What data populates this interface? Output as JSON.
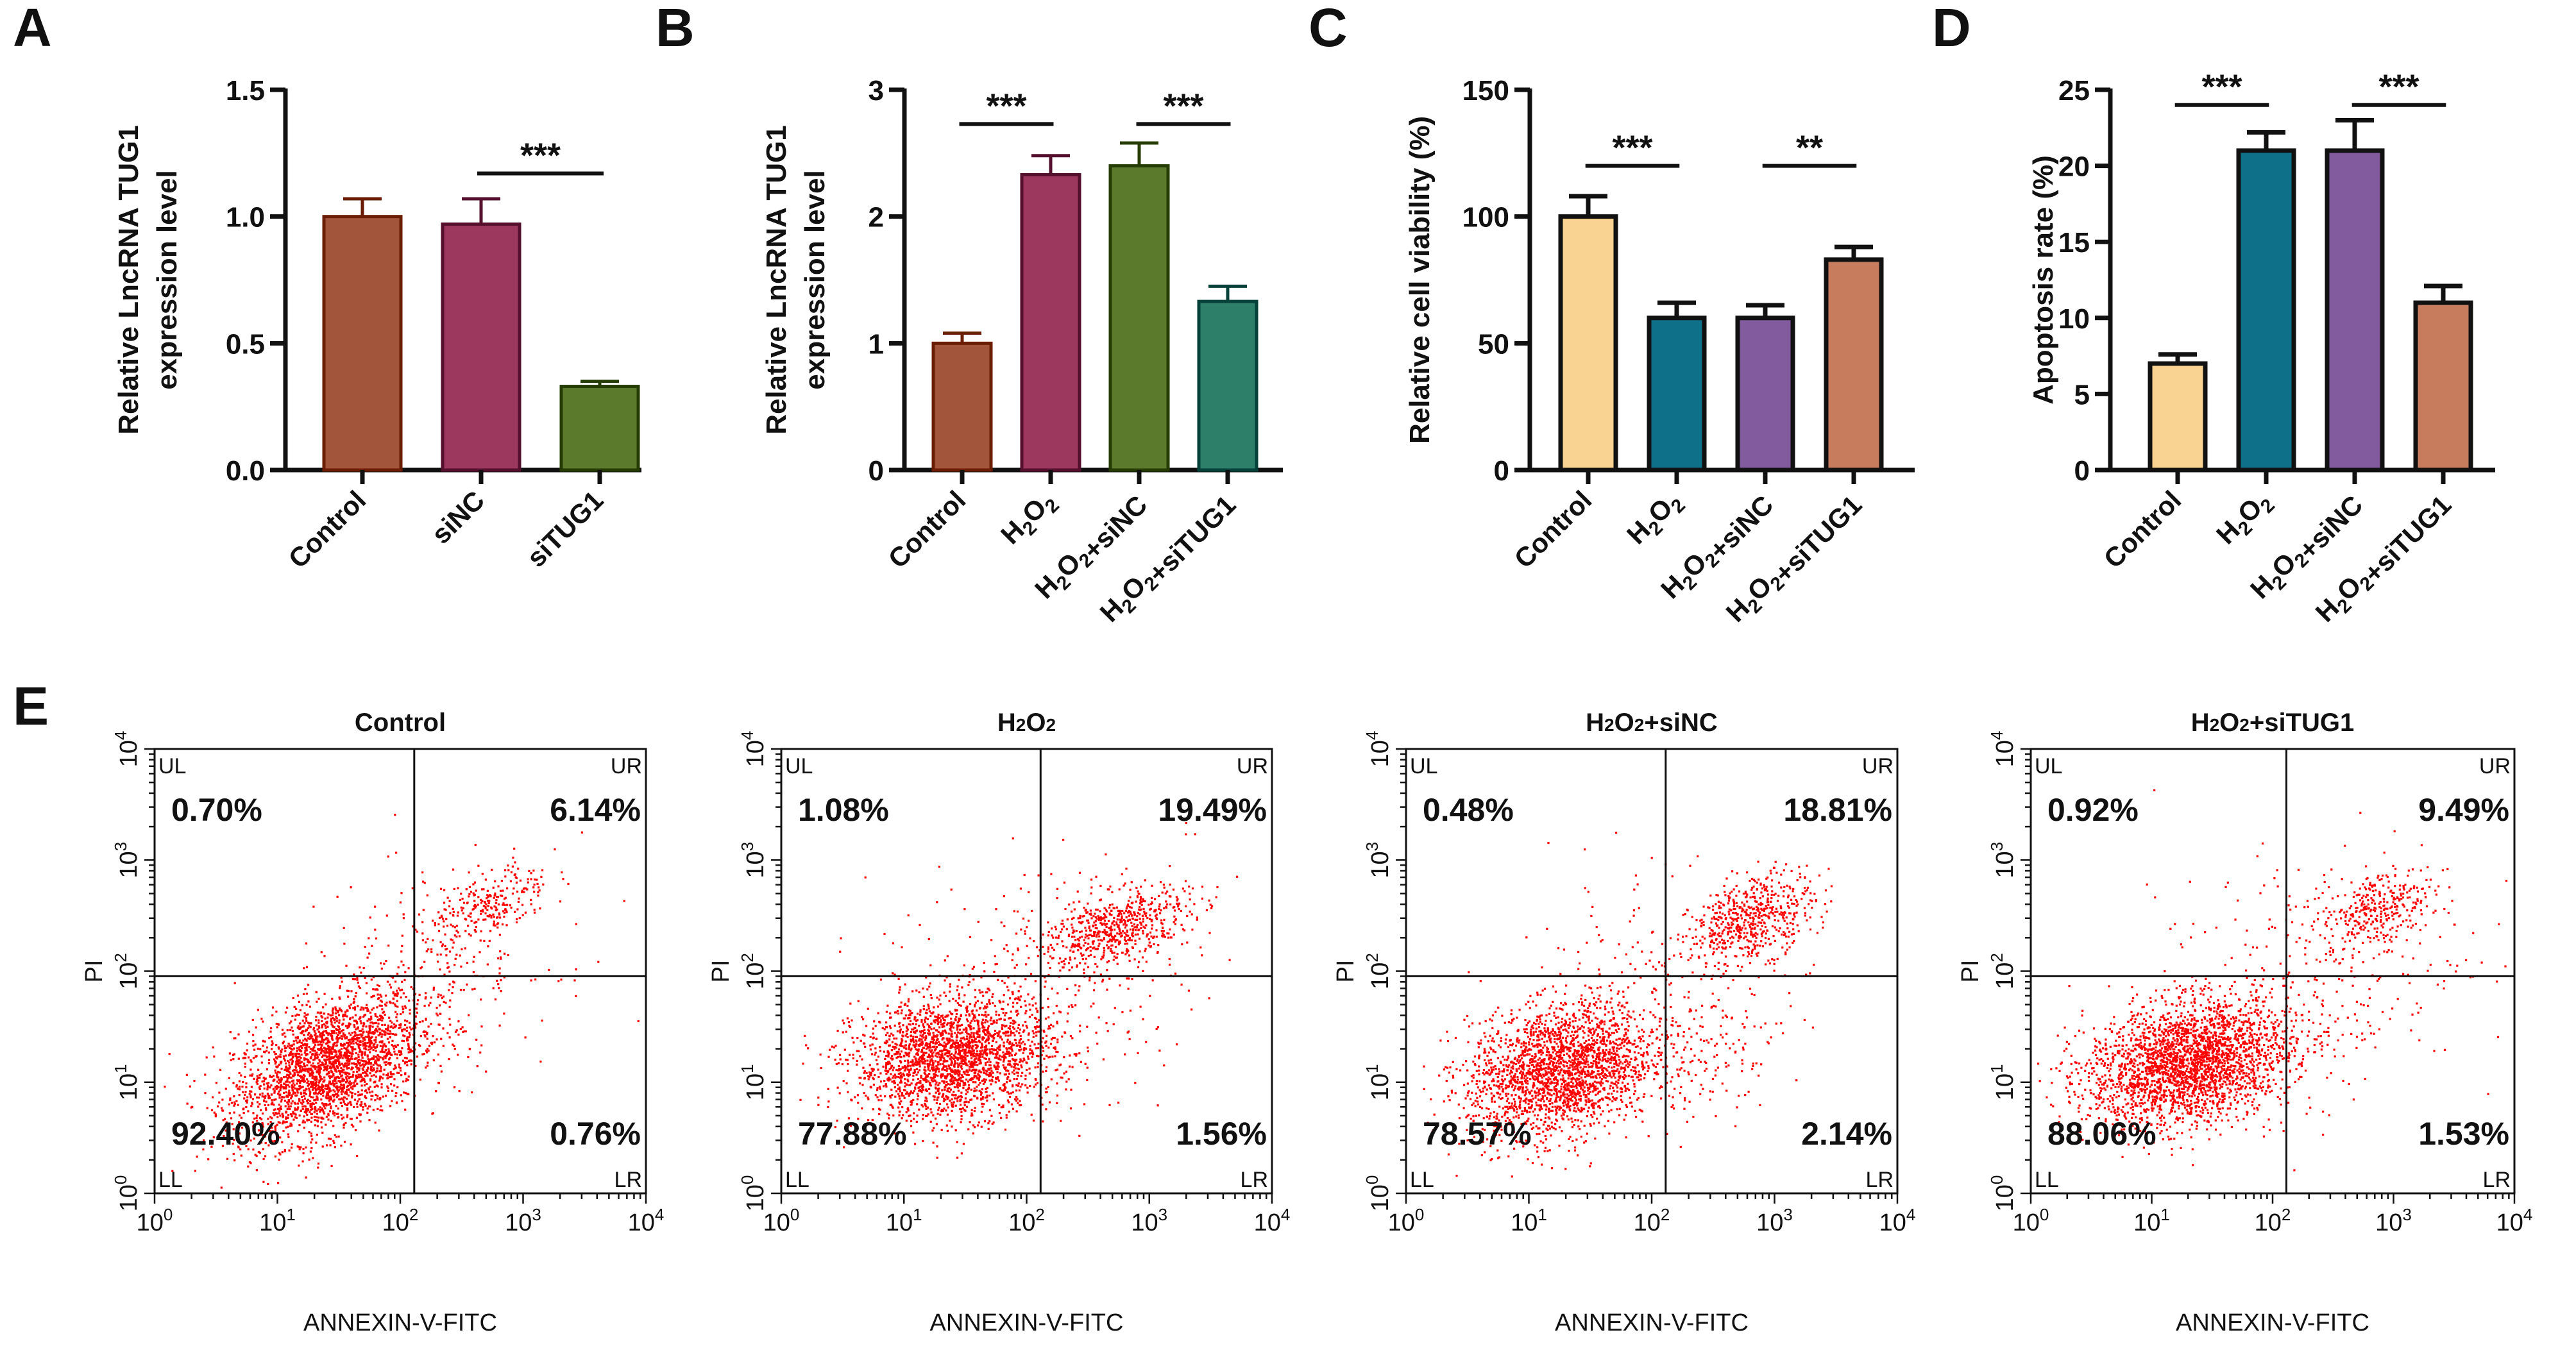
{
  "chart_data": [
    {
      "panel": "A",
      "type": "bar",
      "title": "",
      "xlabel": "",
      "ylabel": [
        "Relative LncRNA TUG1",
        "expression level"
      ],
      "ylim": [
        0,
        1.5
      ],
      "yticks": [
        "0.0",
        "0.5",
        "1.0",
        "1.5"
      ],
      "ytick_values": [
        0,
        0.5,
        1.0,
        1.5
      ],
      "categories": [
        {
          "label": "Control",
          "sub": null
        },
        {
          "label": "siNC",
          "sub": null
        },
        {
          "label": "siTUG1",
          "sub": null
        }
      ],
      "values": [
        1.0,
        0.97,
        0.33
      ],
      "errors": [
        0.07,
        0.1,
        0.02
      ],
      "colors": [
        "#a3553c",
        "#9c385d",
        "#5c7a2c"
      ],
      "edge_colors": [
        "#6b1e05",
        "#55102e",
        "#253d05"
      ],
      "significance": [
        {
          "from": 1,
          "to": 2,
          "label": "***",
          "y": 1.17
        }
      ]
    },
    {
      "panel": "B",
      "type": "bar",
      "title": "",
      "xlabel": "",
      "ylabel": [
        "Relative LncRNA TUG1",
        "expression level"
      ],
      "ylim": [
        0,
        3
      ],
      "yticks": [
        "0",
        "1",
        "2",
        "3"
      ],
      "ytick_values": [
        0,
        1,
        2,
        3
      ],
      "categories": [
        {
          "label": "Control"
        },
        {
          "label": "H2O2"
        },
        {
          "label": "H2O2+siNC"
        },
        {
          "label": "H2O2+siTUG1"
        }
      ],
      "values": [
        1.0,
        2.33,
        2.4,
        1.33
      ],
      "errors": [
        0.08,
        0.15,
        0.18,
        0.12
      ],
      "colors": [
        "#a3553c",
        "#9c385d",
        "#5c7a2c",
        "#2d7f69"
      ],
      "edge_colors": [
        "#6b1e05",
        "#55102e",
        "#253d05",
        "#06423a"
      ],
      "significance": [
        {
          "from": 0,
          "to": 1,
          "label": "***",
          "y": 2.73
        },
        {
          "from": 2,
          "to": 3,
          "label": "***",
          "y": 2.73
        }
      ]
    },
    {
      "panel": "C",
      "type": "bar",
      "title": "",
      "xlabel": "",
      "ylabel": [
        "Relative cell viability (%)"
      ],
      "ylim": [
        0,
        150
      ],
      "yticks": [
        "0",
        "50",
        "100",
        "150"
      ],
      "ytick_values": [
        0,
        50,
        100,
        150
      ],
      "categories": [
        {
          "label": "Control"
        },
        {
          "label": "H2O2"
        },
        {
          "label": "H2O2+siNC"
        },
        {
          "label": "H2O2+siTUG1"
        }
      ],
      "values": [
        100,
        60,
        60,
        83
      ],
      "errors": [
        8,
        6,
        5,
        5
      ],
      "colors": [
        "#f8d391",
        "#0e7189",
        "#825a9e",
        "#c87c5e"
      ],
      "edge_colors": [
        "#111111",
        "#111111",
        "#111111",
        "#111111"
      ],
      "significance": [
        {
          "from": 0,
          "to": 1,
          "label": "***",
          "y": 120
        },
        {
          "from": 2,
          "to": 3,
          "label": "**",
          "y": 120
        }
      ]
    },
    {
      "panel": "D",
      "type": "bar",
      "title": "",
      "xlabel": "",
      "ylabel": [
        "Apoptosis rate (%)"
      ],
      "ylim": [
        0,
        25
      ],
      "yticks": [
        "0",
        "5",
        "10",
        "15",
        "20",
        "25"
      ],
      "ytick_values": [
        0,
        5,
        10,
        15,
        20,
        25
      ],
      "categories": [
        {
          "label": "Control"
        },
        {
          "label": "H2O2"
        },
        {
          "label": "H2O2+siNC"
        },
        {
          "label": "H2O2+siTUG1"
        }
      ],
      "values": [
        7.0,
        21.0,
        21.0,
        11.0
      ],
      "errors": [
        0.6,
        1.2,
        2.0,
        1.1
      ],
      "colors": [
        "#f8d391",
        "#0e7189",
        "#825a9e",
        "#c87c5e"
      ],
      "edge_colors": [
        "#111111",
        "#111111",
        "#111111",
        "#111111"
      ],
      "significance": [
        {
          "from": 0,
          "to": 1,
          "label": "***",
          "y": 24.0
        },
        {
          "from": 2,
          "to": 3,
          "label": "***",
          "y": 24.0
        }
      ]
    },
    {
      "panel": "E",
      "type": "scatter",
      "xlabel": "ANNEXIN-V-FITC",
      "ylabel": "PI",
      "xscale": "log",
      "yscale": "log",
      "xlim": [
        1,
        10000
      ],
      "ylim": [
        1,
        10000
      ],
      "xticks": [
        "10^0",
        "10^1",
        "10^2",
        "10^3",
        "10^4"
      ],
      "yticks": [
        "10^0",
        "10^1",
        "10^2",
        "10^3",
        "10^4"
      ],
      "quadrant_labels": [
        "UL",
        "UR",
        "LL",
        "LR"
      ],
      "point_color": "#ff0000",
      "plots": [
        {
          "title": "Control",
          "gate": {
            "x": 130,
            "y": 90
          },
          "quadrants": {
            "UL": "0.70%",
            "UR": "6.14%",
            "LL": "92.40%",
            "LR": "0.76%"
          },
          "clusters": [
            {
              "cx": 25,
              "cy": 14,
              "sx": 0.38,
              "sy": 0.33,
              "rho": 0.45,
              "n": 2600
            },
            {
              "cx": 520,
              "cy": 380,
              "sx": 0.25,
              "sy": 0.2,
              "rho": 0.6,
              "n": 260
            },
            {
              "cx": 150,
              "cy": 80,
              "sx": 0.55,
              "sy": 0.5,
              "rho": 0.3,
              "n": 260
            }
          ]
        },
        {
          "title": "H2O2",
          "gate": {
            "x": 130,
            "y": 90
          },
          "quadrants": {
            "UL": "1.08%",
            "UR": "19.49%",
            "LL": "77.88%",
            "LR": "1.56%"
          },
          "clusters": [
            {
              "cx": 25,
              "cy": 17,
              "sx": 0.4,
              "sy": 0.27,
              "rho": 0.15,
              "n": 2300
            },
            {
              "cx": 520,
              "cy": 250,
              "sx": 0.3,
              "sy": 0.18,
              "rho": 0.45,
              "n": 620
            },
            {
              "cx": 110,
              "cy": 70,
              "sx": 0.65,
              "sy": 0.55,
              "rho": 0.2,
              "n": 300
            }
          ]
        },
        {
          "title": "H2O2+siNC",
          "gate": {
            "x": 130,
            "y": 90
          },
          "quadrants": {
            "UL": "0.48%",
            "UR": "18.81%",
            "LL": "78.57%",
            "LR": "2.14%"
          },
          "clusters": [
            {
              "cx": 18,
              "cy": 13,
              "sx": 0.38,
              "sy": 0.3,
              "rho": 0.25,
              "n": 2300
            },
            {
              "cx": 650,
              "cy": 300,
              "sx": 0.25,
              "sy": 0.2,
              "rho": 0.4,
              "n": 560
            },
            {
              "cx": 250,
              "cy": 20,
              "sx": 0.3,
              "sy": 0.25,
              "rho": 0.1,
              "n": 120
            },
            {
              "cx": 110,
              "cy": 70,
              "sx": 0.6,
              "sy": 0.55,
              "rho": 0.25,
              "n": 200
            }
          ]
        },
        {
          "title": "H2O2+siTUG1",
          "gate": {
            "x": 130,
            "y": 90
          },
          "quadrants": {
            "UL": "0.92%",
            "UR": "9.49%",
            "LL": "88.06%",
            "LR": "1.53%"
          },
          "clusters": [
            {
              "cx": 20,
              "cy": 15,
              "sx": 0.42,
              "sy": 0.28,
              "rho": 0.25,
              "n": 2700
            },
            {
              "cx": 750,
              "cy": 380,
              "sx": 0.22,
              "sy": 0.18,
              "rho": 0.4,
              "n": 300
            },
            {
              "cx": 200,
              "cy": 90,
              "sx": 0.65,
              "sy": 0.6,
              "rho": 0.3,
              "n": 320
            }
          ]
        }
      ]
    }
  ]
}
